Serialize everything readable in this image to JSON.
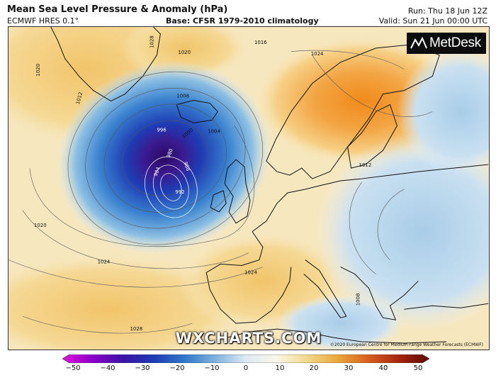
{
  "header": {
    "title": "Mean Sea Level Pressure & Anomaly (hPa)",
    "model": "ECMWF HRES 0.1°",
    "base": "Base: CFSR 1979-2010 climatology",
    "run": "Run: Thu 18 Jun 12Z",
    "valid": "Valid: Sun 21 Jun 00:00 UTC"
  },
  "logo": {
    "text": "MetDesk"
  },
  "watermark": "WXCHARTS.COM",
  "copyright": "©2020 European Centre for Medium-range Weather Forecasts (ECMWF)",
  "isobar_labels": [
    "1020",
    "1028",
    "1020",
    "1024",
    "1016",
    "1012",
    "1008",
    "996",
    "1000",
    "1004",
    "980",
    "984",
    "988",
    "992",
    "1020",
    "1024",
    "1012",
    "1024",
    "1028",
    "1008"
  ],
  "colorbar": {
    "ticks": [
      "−50",
      "−40",
      "−30",
      "−20",
      "−10",
      "0",
      "10",
      "20",
      "30",
      "40",
      "50"
    ],
    "colors": [
      "#e010e0",
      "#8a00c8",
      "#3a14a8",
      "#1e3cb4",
      "#2f78cc",
      "#7fb2dc",
      "#dceaf4",
      "#fbf6e8",
      "#f2d98a",
      "#eaa83a",
      "#d9601e",
      "#a8240c",
      "#5a0a04"
    ]
  }
}
